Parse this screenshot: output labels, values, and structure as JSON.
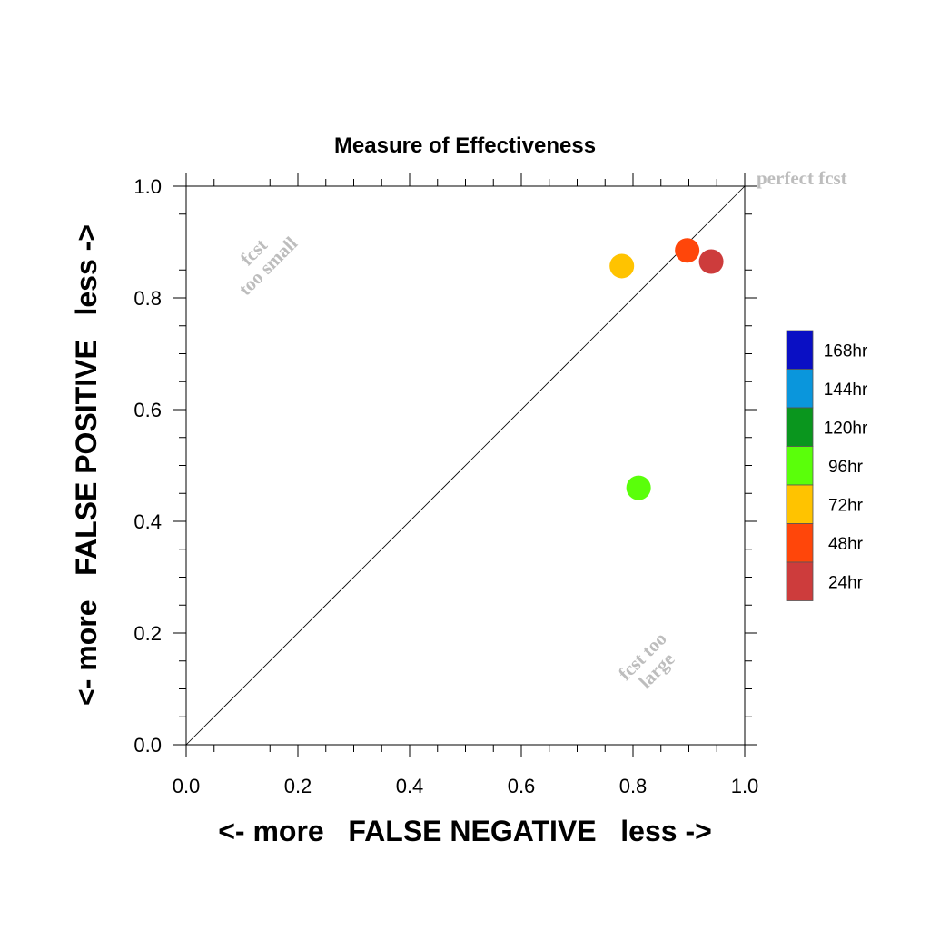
{
  "chart_data": {
    "type": "scatter",
    "title": "Measure of Effectiveness",
    "xlabel": "<- more   FALSE NEGATIVE   less ->",
    "ylabel": "<- more   FALSE POSITIVE   less ->",
    "xlim": [
      0.0,
      1.0
    ],
    "ylim": [
      0.0,
      1.0
    ],
    "x_ticks": [
      "0.0",
      "0.2",
      "0.4",
      "0.6",
      "0.8",
      "1.0"
    ],
    "y_ticks": [
      "0.0",
      "0.2",
      "0.4",
      "0.6",
      "0.8",
      "1.0"
    ],
    "diagonal_line": true,
    "grid": false,
    "legend_position": "right",
    "annotations": {
      "perfect": "perfect fcst",
      "too_small": [
        "fcst",
        "too small"
      ],
      "too_large": [
        "fcst too",
        "large"
      ]
    },
    "series": [
      {
        "name": "168hr",
        "color": "#0a0fc4",
        "points": []
      },
      {
        "name": "144hr",
        "color": "#0a96dc",
        "points": []
      },
      {
        "name": "120hr",
        "color": "#0a961e",
        "points": []
      },
      {
        "name": "96hr",
        "color": "#5aff0a",
        "points": [
          {
            "x": 0.81,
            "y": 0.46
          }
        ]
      },
      {
        "name": "72hr",
        "color": "#ffc300",
        "points": [
          {
            "x": 0.78,
            "y": 0.857
          }
        ]
      },
      {
        "name": "48hr",
        "color": "#ff460a",
        "points": [
          {
            "x": 0.897,
            "y": 0.885
          }
        ]
      },
      {
        "name": "24hr",
        "color": "#cd3c3c",
        "points": [
          {
            "x": 0.94,
            "y": 0.865
          }
        ]
      }
    ]
  }
}
